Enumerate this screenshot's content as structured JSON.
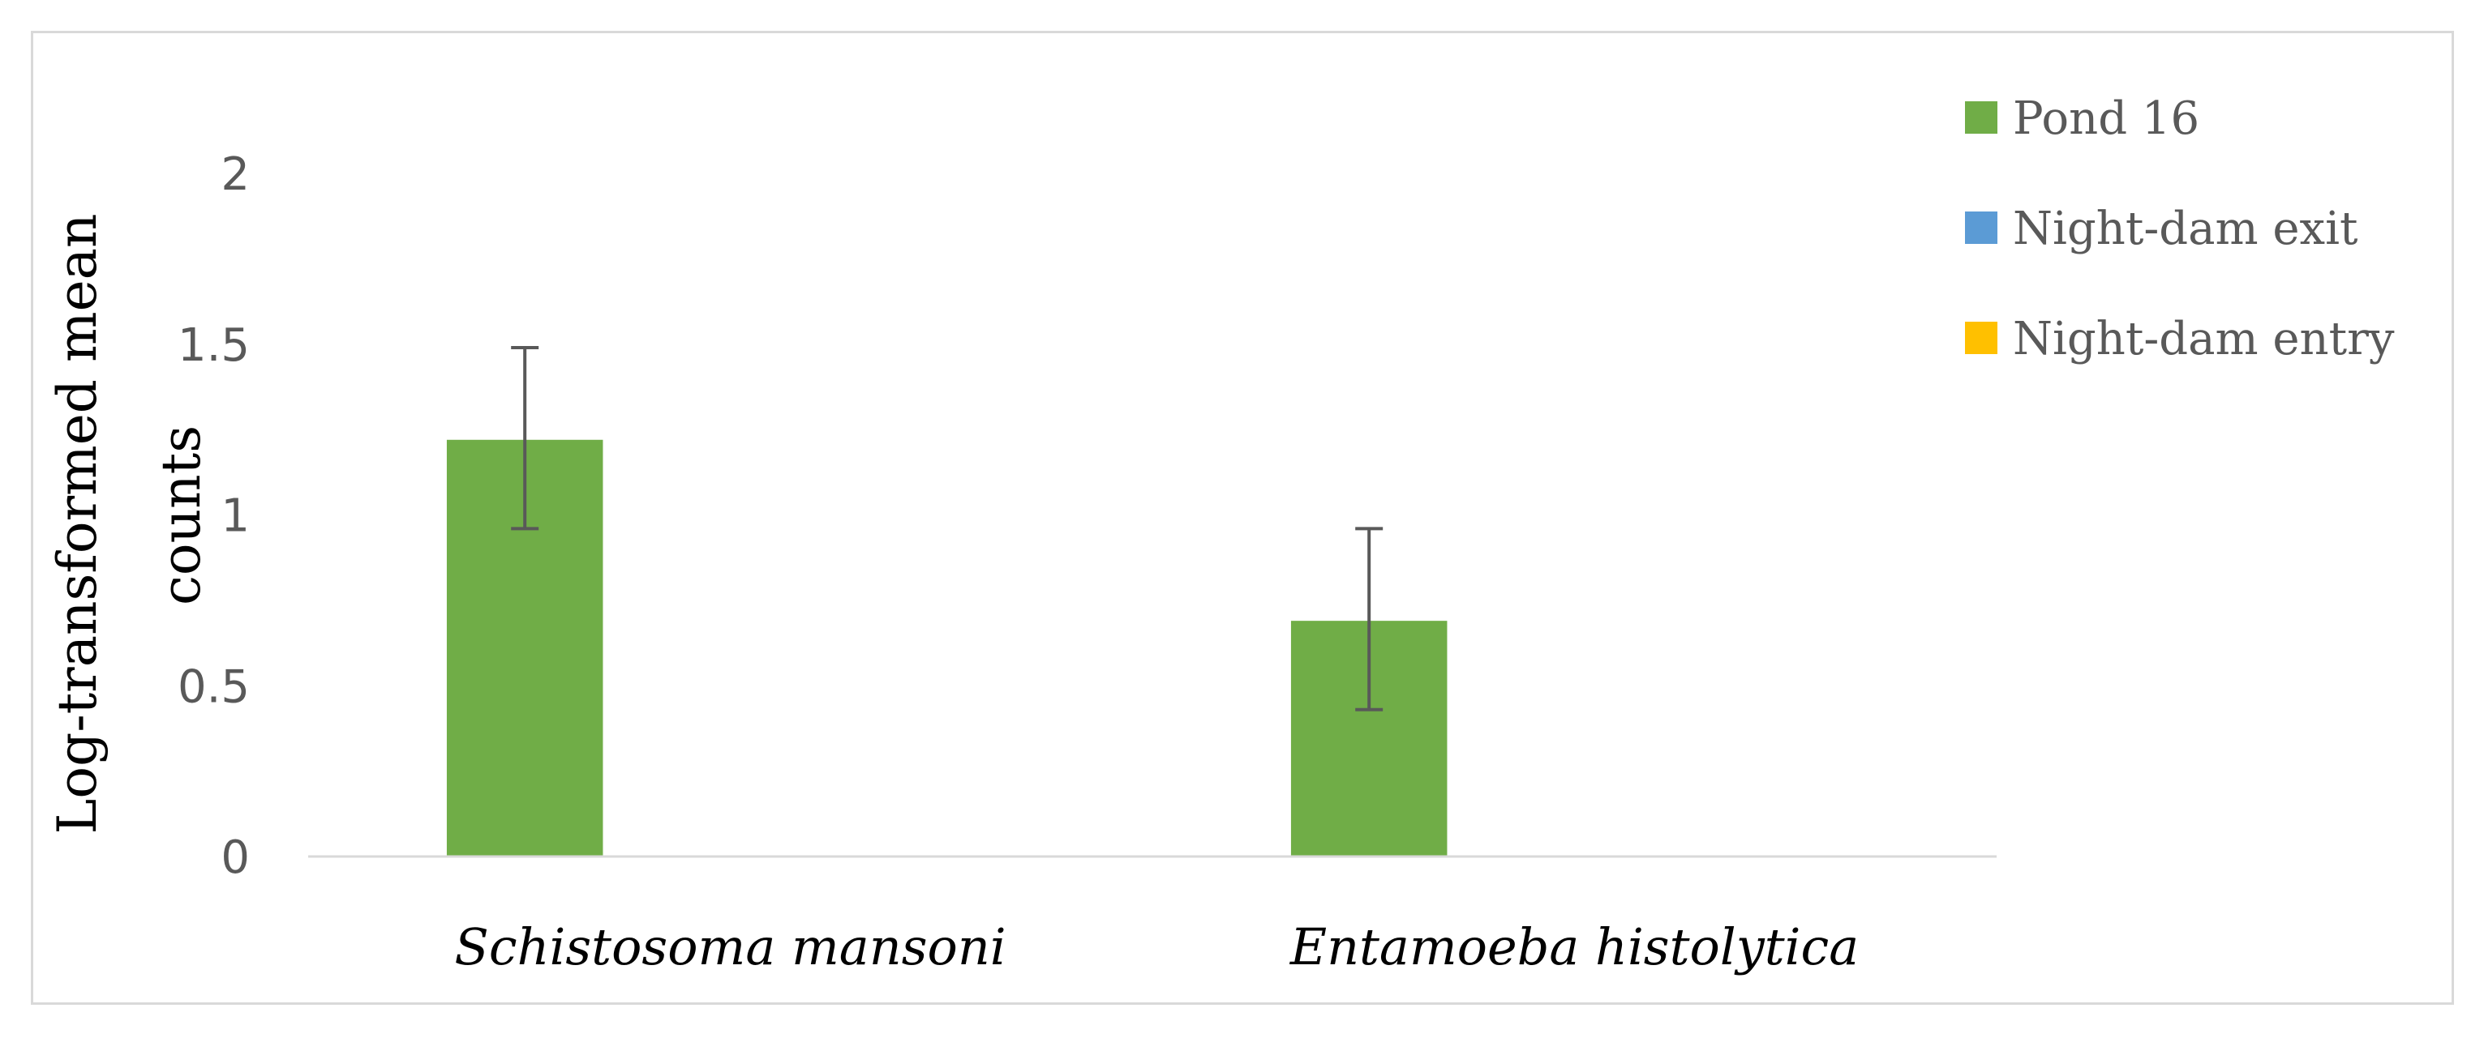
{
  "chart_data": {
    "type": "bar",
    "title": "",
    "xlabel": "",
    "ylabel": "Log-transformed mean counts",
    "ylabel_lines": [
      "Log-transformed mean",
      "counts"
    ],
    "categories": [
      "Schistosoma mansoni",
      "Entamoeba histolytica"
    ],
    "ylim": [
      0,
      2
    ],
    "yticks": [
      0,
      0.5,
      1,
      1.5,
      2
    ],
    "ytick_labels": [
      "0",
      "0.5",
      "1",
      "1.5",
      "2"
    ],
    "grid": false,
    "legend_position": "top-right",
    "series": [
      {
        "name": "Pond 16",
        "color": "#70ad47",
        "values": [
          1.22,
          0.69
        ],
        "error_low": [
          0.96,
          0.43
        ],
        "error_high": [
          1.49,
          0.96
        ]
      },
      {
        "name": "Night-dam exit",
        "color": "#5b9bd5",
        "values": [
          0,
          0
        ],
        "error_low": [
          0,
          0
        ],
        "error_high": [
          0,
          0
        ]
      },
      {
        "name": "Night-dam entry",
        "color": "#ffc000",
        "values": [
          0,
          0
        ],
        "error_low": [
          0,
          0
        ],
        "error_high": [
          0,
          0
        ]
      }
    ]
  }
}
